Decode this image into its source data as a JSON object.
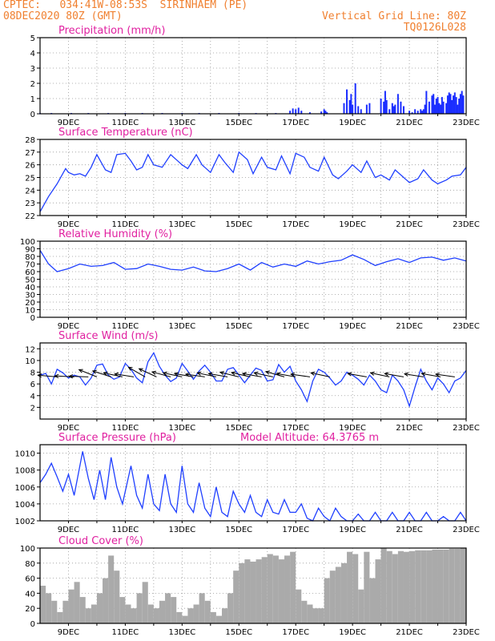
{
  "header": {
    "station": "CPTEC:   034:41W-08:53S  SIRINHAEM (PE)",
    "date": "08DEC2020 80Z (GMT)",
    "grid_note": "Vertical Grid Line: 80Z",
    "code": "TQ0126L028"
  },
  "colors": {
    "header": "#f08030",
    "title": "#e020a0",
    "line": "#2040ff",
    "bar": "#1a2dff",
    "cloud": "#aaaaaa",
    "wind": "#000000"
  },
  "x_ticks": [
    "9DEC",
    "11DEC",
    "13DEC",
    "15DEC",
    "17DEC",
    "19DEC",
    "21DEC",
    "23DEC"
  ],
  "chart_data": [
    {
      "type": "bar",
      "title": "Precipitation (mm/h)",
      "ylim": [
        0,
        5
      ],
      "yticks": [
        "0",
        "1",
        "2",
        "3",
        "4",
        "5"
      ],
      "x": [
        8.0,
        8.4,
        9.1,
        9.7,
        10.4,
        11.0,
        11.6,
        12.3,
        13.0,
        13.6,
        14.3,
        15.0,
        15.6,
        16.3,
        16.8,
        16.9,
        17.0,
        17.1,
        17.2,
        17.5,
        17.9,
        18.0,
        18.05,
        18.1,
        18.7,
        18.8,
        18.9,
        18.95,
        19.0,
        19.1,
        19.2,
        19.3,
        19.5,
        19.6,
        20.0,
        20.1,
        20.15,
        20.2,
        20.3,
        20.4,
        20.45,
        20.5,
        20.6,
        20.7,
        20.8,
        21.0,
        21.1,
        21.2,
        21.3,
        21.4,
        21.45,
        21.5,
        21.55,
        21.6,
        21.7,
        21.8,
        21.85,
        21.9,
        21.95,
        22.0,
        22.05,
        22.1,
        22.15,
        22.2,
        22.3,
        22.35,
        22.4,
        22.45,
        22.5,
        22.55,
        22.6,
        22.65,
        22.7,
        22.75,
        22.8,
        22.85,
        22.9
      ],
      "values": [
        0.05,
        0.05,
        0.05,
        0.05,
        0.05,
        0.05,
        0.05,
        0.05,
        0.05,
        0.05,
        0.05,
        0.05,
        0.05,
        0.05,
        0.2,
        0.35,
        0.3,
        0.4,
        0.2,
        0.1,
        0.15,
        0.3,
        0.2,
        0.1,
        0.7,
        1.6,
        0.9,
        1.3,
        0.6,
        2.0,
        0.5,
        0.3,
        0.6,
        0.7,
        1.0,
        0.8,
        1.5,
        0.9,
        0.3,
        0.7,
        0.5,
        0.6,
        1.3,
        0.8,
        0.5,
        0.2,
        0.1,
        0.3,
        0.2,
        0.3,
        0.2,
        0.3,
        0.6,
        1.5,
        0.8,
        1.2,
        1.3,
        0.6,
        1.0,
        1.1,
        0.7,
        0.6,
        1.1,
        0.8,
        0.7,
        1.2,
        1.4,
        1.3,
        0.9,
        1.2,
        1.4,
        1.1,
        0.6,
        1.0,
        1.3,
        1.5,
        1.2
      ]
    },
    {
      "type": "line",
      "title": "Surface Temperature (nC)",
      "ylim": [
        22,
        28
      ],
      "yticks": [
        "22",
        "23",
        "24",
        "25",
        "26",
        "27",
        "28"
      ],
      "x": [
        8.0,
        8.3,
        8.6,
        8.9,
        9.0,
        9.2,
        9.4,
        9.6,
        9.8,
        10.0,
        10.3,
        10.5,
        10.7,
        11.0,
        11.2,
        11.4,
        11.6,
        11.8,
        12.0,
        12.3,
        12.6,
        12.8,
        13.0,
        13.2,
        13.5,
        13.7,
        14.0,
        14.3,
        14.5,
        14.8,
        15.0,
        15.3,
        15.5,
        15.8,
        16.0,
        16.3,
        16.5,
        16.8,
        17.0,
        17.3,
        17.5,
        17.8,
        18.0,
        18.3,
        18.5,
        18.8,
        19.0,
        19.3,
        19.5,
        19.8,
        20.0,
        20.3,
        20.5,
        20.8,
        21.0,
        21.3,
        21.5,
        21.8,
        22.0,
        22.3,
        22.5,
        22.8,
        23.0
      ],
      "values": [
        22.3,
        23.5,
        24.5,
        25.7,
        25.4,
        25.2,
        25.3,
        25.1,
        25.8,
        26.8,
        25.6,
        25.4,
        26.8,
        26.9,
        26.3,
        25.6,
        25.8,
        26.8,
        26.0,
        25.8,
        26.8,
        26.4,
        26.0,
        25.7,
        26.8,
        26.0,
        25.4,
        26.8,
        26.2,
        25.4,
        27.0,
        26.4,
        25.3,
        26.6,
        25.8,
        25.6,
        26.7,
        25.3,
        26.9,
        26.6,
        25.8,
        25.5,
        26.6,
        25.2,
        24.9,
        25.5,
        26.0,
        25.4,
        26.3,
        25.0,
        25.2,
        24.8,
        25.6,
        25.0,
        24.6,
        24.9,
        25.6,
        24.8,
        24.5,
        24.8,
        25.1,
        25.2,
        25.8
      ]
    },
    {
      "type": "line",
      "title": "Relative Humidity (%)",
      "ylim": [
        0,
        100
      ],
      "yticks": [
        "0",
        "10",
        "20",
        "30",
        "40",
        "50",
        "60",
        "70",
        "80",
        "90",
        "100"
      ],
      "x": [
        8.0,
        8.3,
        8.6,
        9.0,
        9.4,
        9.8,
        10.2,
        10.6,
        11.0,
        11.4,
        11.8,
        12.2,
        12.6,
        13.0,
        13.4,
        13.8,
        14.2,
        14.6,
        15.0,
        15.4,
        15.8,
        16.2,
        16.6,
        17.0,
        17.4,
        17.8,
        18.2,
        18.6,
        19.0,
        19.4,
        19.8,
        20.2,
        20.6,
        21.0,
        21.4,
        21.8,
        22.2,
        22.6,
        23.0
      ],
      "values": [
        88,
        70,
        60,
        64,
        70,
        67,
        68,
        72,
        63,
        64,
        70,
        67,
        63,
        62,
        66,
        61,
        60,
        64,
        70,
        62,
        72,
        66,
        70,
        67,
        74,
        70,
        73,
        75,
        82,
        76,
        68,
        73,
        77,
        72,
        78,
        79,
        75,
        78,
        74
      ]
    },
    {
      "type": "line",
      "title": "Surface Wind (m/s)",
      "ylim": [
        0,
        13
      ],
      "yticks": [
        "2",
        "4",
        "6",
        "8",
        "10",
        "12"
      ],
      "x": [
        8.0,
        8.2,
        8.4,
        8.6,
        8.8,
        9.0,
        9.2,
        9.4,
        9.6,
        9.8,
        10.0,
        10.2,
        10.4,
        10.6,
        10.8,
        11.0,
        11.2,
        11.4,
        11.6,
        11.8,
        12.0,
        12.2,
        12.4,
        12.6,
        12.8,
        13.0,
        13.2,
        13.4,
        13.6,
        13.8,
        14.0,
        14.2,
        14.4,
        14.6,
        14.8,
        15.0,
        15.2,
        15.4,
        15.6,
        15.8,
        16.0,
        16.2,
        16.4,
        16.6,
        16.8,
        17.0,
        17.2,
        17.4,
        17.6,
        17.8,
        18.0,
        18.2,
        18.4,
        18.6,
        18.8,
        19.0,
        19.2,
        19.4,
        19.6,
        19.8,
        20.0,
        20.2,
        20.4,
        20.6,
        20.8,
        21.0,
        21.2,
        21.4,
        21.6,
        21.8,
        22.0,
        22.2,
        22.4,
        22.6,
        22.8,
        23.0
      ],
      "values": [
        7.5,
        7.8,
        6.0,
        8.5,
        7.9,
        7.0,
        7.5,
        7.2,
        5.8,
        7.0,
        9.2,
        9.4,
        7.5,
        6.8,
        7.2,
        9.5,
        8.5,
        7.0,
        6.2,
        9.8,
        11.3,
        9.0,
        7.5,
        6.4,
        7.0,
        9.5,
        8.2,
        6.8,
        8.2,
        9.2,
        8.0,
        6.5,
        6.5,
        8.5,
        8.8,
        7.5,
        6.2,
        7.5,
        8.7,
        8.3,
        6.5,
        6.7,
        9.3,
        8.0,
        9.0,
        6.5,
        5.0,
        3.0,
        6.5,
        8.5,
        8.0,
        7.0,
        5.8,
        6.5,
        8.0,
        7.5,
        6.8,
        5.8,
        7.5,
        6.5,
        5.0,
        4.5,
        7.5,
        6.5,
        5.0,
        2.2,
        5.5,
        8.5,
        6.5,
        5.0,
        7.0,
        6.0,
        4.5,
        6.5,
        7.0,
        8.3
      ],
      "arrows": [
        {
          "x": 8.6,
          "angle": 5
        },
        {
          "x": 9.2,
          "angle": 3
        },
        {
          "x": 9.7,
          "angle": 2
        },
        {
          "x": 10.0,
          "angle": 22
        },
        {
          "x": 10.5,
          "angle": 18
        },
        {
          "x": 10.9,
          "angle": 12
        },
        {
          "x": 11.3,
          "angle": 9
        },
        {
          "x": 11.7,
          "angle": 30
        },
        {
          "x": 12.1,
          "angle": 25
        },
        {
          "x": 12.6,
          "angle": 15
        },
        {
          "x": 13.0,
          "angle": 12
        },
        {
          "x": 13.4,
          "angle": 10
        },
        {
          "x": 13.8,
          "angle": 8
        },
        {
          "x": 14.2,
          "angle": 12
        },
        {
          "x": 14.6,
          "angle": 10
        },
        {
          "x": 15.0,
          "angle": 14
        },
        {
          "x": 15.4,
          "angle": 13
        },
        {
          "x": 15.8,
          "angle": 10
        },
        {
          "x": 16.2,
          "angle": 12
        },
        {
          "x": 16.6,
          "angle": 16
        },
        {
          "x": 17.0,
          "angle": 10
        },
        {
          "x": 17.5,
          "angle": 8
        },
        {
          "x": 18.2,
          "angle": 12
        },
        {
          "x": 19.5,
          "angle": 10
        },
        {
          "x": 20.3,
          "angle": 12
        },
        {
          "x": 20.8,
          "angle": 10
        },
        {
          "x": 21.5,
          "angle": 9
        },
        {
          "x": 22.1,
          "angle": 10
        },
        {
          "x": 22.6,
          "angle": 8
        }
      ]
    },
    {
      "type": "line",
      "title": "Surface Pressure (hPa)",
      "annotation": "Model Altitude: 64.3765 m",
      "ylim": [
        1002,
        1011
      ],
      "yticks": [
        "1002",
        "1004",
        "1006",
        "1008",
        "1010"
      ],
      "x": [
        8.0,
        8.2,
        8.4,
        8.6,
        8.8,
        9.0,
        9.2,
        9.5,
        9.7,
        9.9,
        10.1,
        10.3,
        10.5,
        10.7,
        10.9,
        11.2,
        11.4,
        11.6,
        11.8,
        12.0,
        12.2,
        12.4,
        12.6,
        12.8,
        13.0,
        13.2,
        13.4,
        13.6,
        13.8,
        14.0,
        14.2,
        14.4,
        14.6,
        14.8,
        15.0,
        15.2,
        15.4,
        15.6,
        15.8,
        16.0,
        16.2,
        16.4,
        16.6,
        16.8,
        17.0,
        17.2,
        17.4,
        17.6,
        17.8,
        18.0,
        18.2,
        18.4,
        18.6,
        18.8,
        19.0,
        19.2,
        19.4,
        19.6,
        19.8,
        20.0,
        20.2,
        20.4,
        20.6,
        20.8,
        21.0,
        21.2,
        21.4,
        21.6,
        21.8,
        22.0,
        22.2,
        22.4,
        22.6,
        22.8,
        23.0
      ],
      "values": [
        1006.5,
        1007.5,
        1008.8,
        1007.2,
        1005.5,
        1007.5,
        1005.0,
        1010.2,
        1007.0,
        1004.5,
        1008.0,
        1004.5,
        1009.5,
        1006.0,
        1004.0,
        1008.5,
        1005.0,
        1003.5,
        1007.5,
        1004.0,
        1003.2,
        1007.5,
        1004.0,
        1003.0,
        1008.5,
        1004.0,
        1003.0,
        1006.5,
        1003.5,
        1002.5,
        1006.0,
        1003.0,
        1002.5,
        1005.5,
        1004.0,
        1003.0,
        1005.0,
        1003.0,
        1002.5,
        1004.5,
        1003.0,
        1002.8,
        1004.5,
        1003.0,
        1003.0,
        1004.0,
        1002.3,
        1002.0,
        1003.5,
        1002.5,
        1002.0,
        1003.5,
        1002.5,
        1002.0,
        1002.0,
        1002.8,
        1002.0,
        1002.0,
        1003.0,
        1002.0,
        1002.0,
        1003.0,
        1002.0,
        1002.0,
        1003.0,
        1002.0,
        1002.0,
        1003.0,
        1002.0,
        1002.0,
        1002.5,
        1002.0,
        1002.0,
        1003.0,
        1002.0
      ]
    },
    {
      "type": "area",
      "title": "Cloud Cover (%)",
      "ylim": [
        0,
        100
      ],
      "yticks": [
        "0",
        "20",
        "40",
        "60",
        "80",
        "100"
      ],
      "x": [
        8.0,
        8.2,
        8.4,
        8.6,
        8.8,
        9.0,
        9.2,
        9.4,
        9.6,
        9.8,
        10.0,
        10.2,
        10.4,
        10.6,
        10.8,
        11.0,
        11.2,
        11.4,
        11.6,
        11.8,
        12.0,
        12.2,
        12.4,
        12.6,
        12.8,
        13.0,
        13.2,
        13.4,
        13.6,
        13.8,
        14.0,
        14.2,
        14.4,
        14.6,
        14.8,
        15.0,
        15.2,
        15.4,
        15.6,
        15.8,
        16.0,
        16.2,
        16.4,
        16.6,
        16.8,
        17.0,
        17.2,
        17.4,
        17.6,
        17.8,
        18.0,
        18.2,
        18.4,
        18.6,
        18.8,
        19.0,
        19.2,
        19.4,
        19.6,
        19.8,
        20.0,
        20.2,
        20.4,
        20.6,
        20.8,
        21.0,
        21.2,
        21.4,
        21.6,
        21.8,
        22.0,
        22.2,
        22.4,
        22.6,
        22.8,
        23.0
      ],
      "values": [
        50,
        40,
        30,
        15,
        30,
        45,
        55,
        35,
        20,
        25,
        40,
        60,
        90,
        70,
        35,
        25,
        20,
        40,
        55,
        25,
        20,
        30,
        40,
        35,
        15,
        10,
        20,
        25,
        40,
        30,
        15,
        10,
        20,
        40,
        70,
        80,
        85,
        82,
        85,
        88,
        92,
        90,
        85,
        90,
        95,
        45,
        30,
        25,
        20,
        20,
        60,
        70,
        75,
        80,
        95,
        92,
        45,
        95,
        60,
        85,
        100,
        96,
        92,
        96,
        95,
        96,
        97,
        97,
        97,
        98,
        98,
        98,
        99,
        99,
        100,
        100
      ]
    }
  ]
}
